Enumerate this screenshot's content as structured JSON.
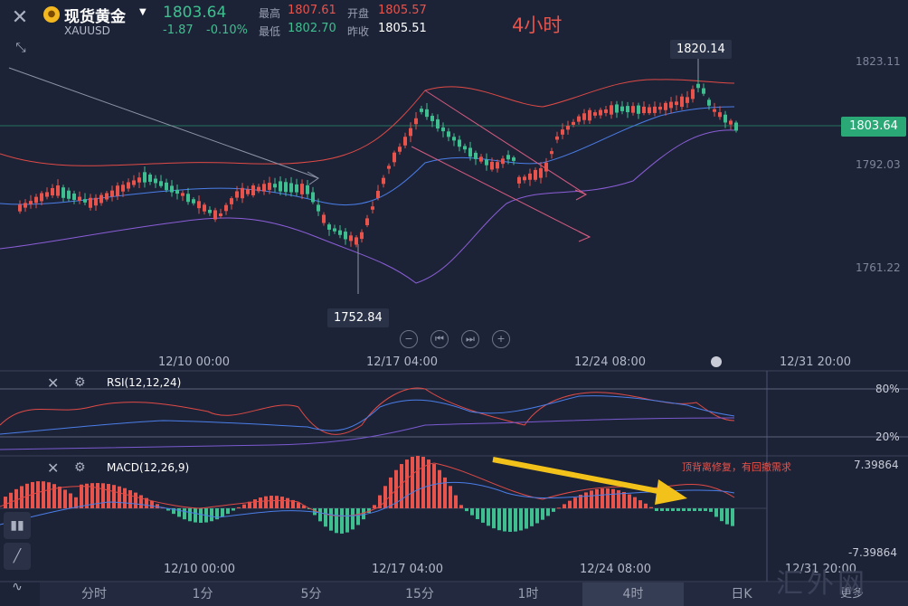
{
  "header": {
    "name": "现货黄金",
    "symbol": "XAUUSD",
    "price": "1803.64",
    "change": "-1.87",
    "change_pct": "-0.10%",
    "high_label": "最高",
    "high": "1807.61",
    "open_label": "开盘",
    "open": "1805.57",
    "low_label": "最低",
    "low": "1802.70",
    "prev_close_label": "昨收",
    "prev_close": "1805.51",
    "chart_title": "4小时"
  },
  "main_chart": {
    "price_axis": [
      "1823.11",
      "1792.03",
      "1761.22"
    ],
    "current_price_tag": "1803.64",
    "high_marker": "1820.14",
    "low_marker": "1752.84",
    "x_labels": [
      "12/10 00:00",
      "12/17 04:00",
      "12/24 08:00",
      "12/31 20:00"
    ]
  },
  "rsi": {
    "label": "RSI(12,12,24)",
    "upper": "80%",
    "lower": "20%"
  },
  "macd": {
    "label": "MACD(12,26,9)",
    "upper": "7.39864",
    "lower": "-7.39864",
    "annotation": "顶背离修复，有回撤需求",
    "x_labels": [
      "12/10 00:00",
      "12/17 04:00",
      "12/24 08:00",
      "12/31 20:00"
    ]
  },
  "tabs": [
    "分时",
    "1分",
    "5分",
    "15分",
    "1时",
    "4时",
    "日K",
    "更多"
  ],
  "active_tab": "4时",
  "watermark": "汇外网",
  "colors": {
    "up": "#e8534b",
    "down": "#3fbf8f",
    "background": "#1d2337",
    "annotation_arrow": "#f2c21a"
  },
  "icons": [
    "close-icon",
    "collapse-icon",
    "gold-coin-icon",
    "caret-down-icon",
    "zoom-out-icon",
    "prev-icon",
    "next-icon",
    "zoom-in-icon",
    "settings-icon",
    "candle-style-icon",
    "draw-line-icon",
    "indicator-icon"
  ]
}
